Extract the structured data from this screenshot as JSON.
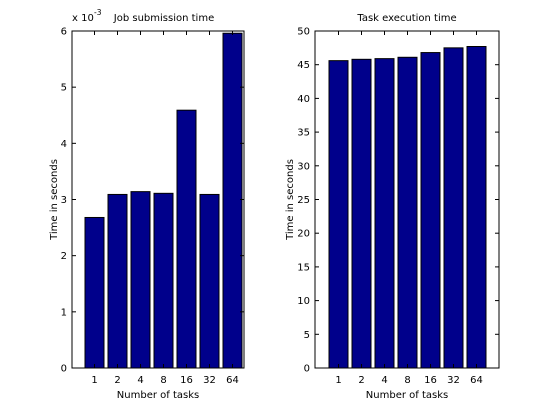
{
  "chart_data": [
    {
      "type": "bar",
      "title": "Job submission time",
      "xlabel": "Number of tasks",
      "ylabel": "Time in seconds",
      "categories": [
        "1",
        "2",
        "4",
        "8",
        "16",
        "32",
        "64"
      ],
      "values": [
        0.00268,
        0.00309,
        0.00314,
        0.00311,
        0.00459,
        0.00309,
        0.00596
      ],
      "ylim": [
        0,
        0.006
      ],
      "yticks": [
        0,
        0.001,
        0.002,
        0.003,
        0.004,
        0.005,
        0.006
      ],
      "ytick_labels": [
        "0",
        "1",
        "2",
        "3",
        "4",
        "5",
        "6"
      ],
      "y_scale_label": "x 10",
      "y_scale_exponent": "-3",
      "bar_color": "#00008b",
      "grid": false
    },
    {
      "type": "bar",
      "title": "Task execution time",
      "xlabel": "Number of tasks",
      "ylabel": "Time in seconds",
      "categories": [
        "1",
        "2",
        "4",
        "8",
        "16",
        "32",
        "64"
      ],
      "values": [
        45.6,
        45.8,
        45.9,
        46.1,
        46.8,
        47.5,
        47.7
      ],
      "ylim": [
        0,
        50
      ],
      "yticks": [
        0,
        5,
        10,
        15,
        20,
        25,
        30,
        35,
        40,
        45,
        50
      ],
      "ytick_labels": [
        "0",
        "5",
        "10",
        "15",
        "20",
        "25",
        "30",
        "35",
        "40",
        "45",
        "50"
      ],
      "bar_color": "#00008b",
      "grid": false
    }
  ]
}
